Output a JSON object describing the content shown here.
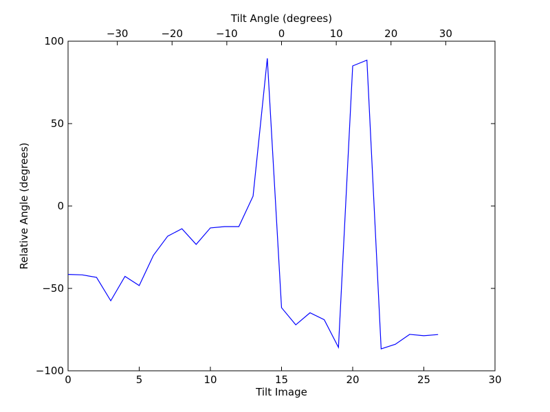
{
  "chart_data": {
    "type": "line",
    "xlabel": "Tilt Image",
    "ylabel": "Relative Angle (degrees)",
    "top_xlabel": "Tilt Angle (degrees)",
    "xlim": [
      0,
      30
    ],
    "ylim": [
      -100,
      100
    ],
    "top_xlim": [
      -39,
      39
    ],
    "xticks": [
      0,
      5,
      10,
      15,
      20,
      25,
      30
    ],
    "yticks": [
      -100,
      -50,
      0,
      50,
      100
    ],
    "top_xticks": [
      -30,
      -20,
      -10,
      0,
      10,
      20,
      30
    ],
    "xtick_labels": [
      "0",
      "5",
      "10",
      "15",
      "20",
      "25",
      "30"
    ],
    "ytick_labels": [
      "−100",
      "−50",
      "0",
      "50",
      "100"
    ],
    "top_xtick_labels": [
      "−30",
      "−20",
      "−10",
      "0",
      "10",
      "20",
      "30"
    ],
    "grid": false,
    "series": [
      {
        "color": "#0000ff",
        "x": [
          0,
          1,
          2,
          3,
          4,
          5,
          6,
          7,
          8,
          9,
          10,
          11,
          12,
          13,
          14,
          15,
          16,
          17,
          18,
          19,
          20,
          21,
          22,
          23,
          24,
          25,
          26
        ],
        "values": [
          -41.5,
          -41.8,
          -43.3,
          -57.5,
          -42.7,
          -48.3,
          -29.9,
          -18.3,
          -13.8,
          -23.3,
          -13.3,
          -12.5,
          -12.5,
          6.0,
          89.6,
          -61.7,
          -72.1,
          -64.8,
          -69.0,
          -85.8,
          85.0,
          88.5,
          -86.7,
          -83.9,
          -77.9,
          -78.7,
          -78.0
        ]
      }
    ]
  }
}
